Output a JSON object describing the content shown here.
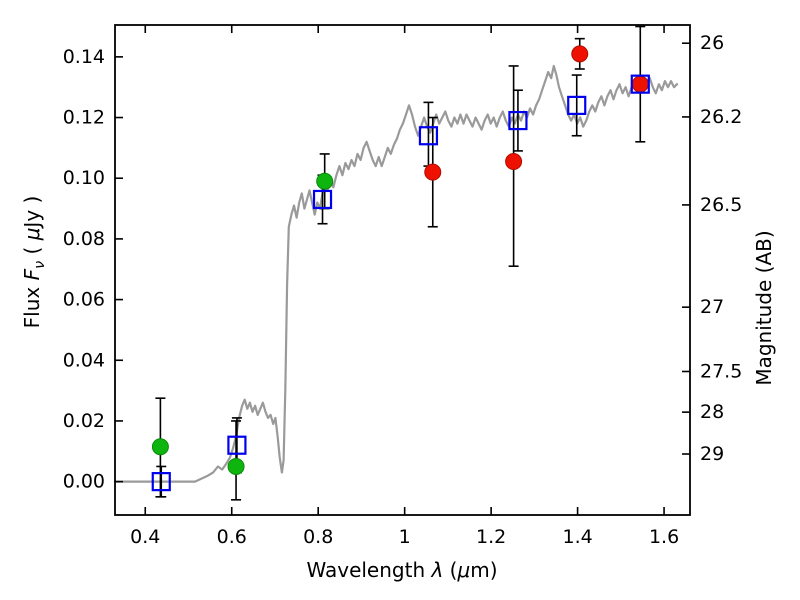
{
  "figure": {
    "background": "#ffffff",
    "frame_color": "#000000"
  },
  "chart_data": {
    "type": "line+scatter",
    "title": "",
    "grid": false,
    "legend": "none",
    "xlabel_text": "Wavelength λ (μm)",
    "ylabel_left_text": "Flux Fν ( μJy )",
    "ylabel_right": "Magnitude (AB)",
    "xlabel": {
      "t1": "Wavelength  ",
      "t2": "λ",
      "t3": " (",
      "t4": "μ",
      "t5": "m)"
    },
    "ylabel_left": {
      "t1": "Flux  ",
      "t2": "F",
      "t3": "ν",
      "t4": "  ( ",
      "t5": "μ",
      "t6": "Jy )"
    },
    "xlim": [
      0.33,
      1.66
    ],
    "ylim": [
      -0.011,
      0.1505
    ],
    "x_ticks": [
      {
        "v": 0.4,
        "label": "0.4"
      },
      {
        "v": 0.6,
        "label": "0.6"
      },
      {
        "v": 0.8,
        "label": "0.8"
      },
      {
        "v": 1.0,
        "label": "1"
      },
      {
        "v": 1.2,
        "label": "1.2"
      },
      {
        "v": 1.4,
        "label": "1.4"
      },
      {
        "v": 1.6,
        "label": "1.6"
      }
    ],
    "y_ticks_left": [
      {
        "v": 0.0,
        "label": "0.00"
      },
      {
        "v": 0.02,
        "label": "0.02"
      },
      {
        "v": 0.04,
        "label": "0.04"
      },
      {
        "v": 0.06,
        "label": "0.06"
      },
      {
        "v": 0.08,
        "label": "0.08"
      },
      {
        "v": 0.1,
        "label": "0.10"
      },
      {
        "v": 0.12,
        "label": "0.12"
      },
      {
        "v": 0.14,
        "label": "0.14"
      }
    ],
    "y_ticks_right": [
      {
        "flux": 0.1445,
        "label": "26"
      },
      {
        "flux": 0.1202,
        "label": "26.2"
      },
      {
        "flux": 0.0912,
        "label": "26.5"
      },
      {
        "flux": 0.0575,
        "label": "27"
      },
      {
        "flux": 0.0363,
        "label": "27.5"
      },
      {
        "flux": 0.0229,
        "label": "28"
      },
      {
        "flux": 0.0091,
        "label": "29"
      }
    ],
    "errorbar_color": "#000000",
    "spectrum": {
      "name": "model-spectrum",
      "color": "#9a9a9a",
      "width": 2.2,
      "xy": [
        [
          0.33,
          0.0
        ],
        [
          0.37,
          0.0
        ],
        [
          0.41,
          0.0
        ],
        [
          0.45,
          0.0
        ],
        [
          0.49,
          0.0
        ],
        [
          0.515,
          0.0
        ],
        [
          0.53,
          0.001
        ],
        [
          0.545,
          0.002
        ],
        [
          0.557,
          0.003
        ],
        [
          0.568,
          0.005
        ],
        [
          0.578,
          0.004
        ],
        [
          0.588,
          0.006
        ],
        [
          0.596,
          0.008
        ],
        [
          0.603,
          0.011
        ],
        [
          0.61,
          0.015
        ],
        [
          0.617,
          0.021
        ],
        [
          0.624,
          0.025
        ],
        [
          0.63,
          0.027
        ],
        [
          0.636,
          0.024
        ],
        [
          0.642,
          0.026
        ],
        [
          0.648,
          0.023
        ],
        [
          0.654,
          0.025
        ],
        [
          0.66,
          0.022
        ],
        [
          0.666,
          0.024
        ],
        [
          0.672,
          0.026
        ],
        [
          0.678,
          0.023
        ],
        [
          0.684,
          0.021
        ],
        [
          0.69,
          0.022
        ],
        [
          0.696,
          0.019
        ],
        [
          0.701,
          0.021
        ],
        [
          0.706,
          0.015
        ],
        [
          0.711,
          0.008
        ],
        [
          0.716,
          0.003
        ],
        [
          0.72,
          0.007
        ],
        [
          0.724,
          0.03
        ],
        [
          0.728,
          0.065
        ],
        [
          0.732,
          0.084
        ],
        [
          0.738,
          0.088
        ],
        [
          0.744,
          0.091
        ],
        [
          0.75,
          0.087
        ],
        [
          0.756,
          0.092
        ],
        [
          0.762,
          0.095
        ],
        [
          0.768,
          0.09
        ],
        [
          0.774,
          0.093
        ],
        [
          0.78,
          0.096
        ],
        [
          0.786,
          0.092
        ],
        [
          0.792,
          0.088
        ],
        [
          0.798,
          0.092
        ],
        [
          0.804,
          0.09
        ],
        [
          0.81,
          0.095
        ],
        [
          0.816,
          0.098
        ],
        [
          0.822,
          0.096
        ],
        [
          0.828,
          0.1
        ],
        [
          0.835,
          0.097
        ],
        [
          0.842,
          0.101
        ],
        [
          0.849,
          0.104
        ],
        [
          0.856,
          0.101
        ],
        [
          0.863,
          0.105
        ],
        [
          0.87,
          0.103
        ],
        [
          0.877,
          0.106
        ],
        [
          0.884,
          0.104
        ],
        [
          0.891,
          0.108
        ],
        [
          0.898,
          0.106
        ],
        [
          0.905,
          0.11
        ],
        [
          0.912,
          0.112
        ],
        [
          0.919,
          0.109
        ],
        [
          0.926,
          0.106
        ],
        [
          0.933,
          0.104
        ],
        [
          0.94,
          0.107
        ],
        [
          0.947,
          0.104
        ],
        [
          0.954,
          0.107
        ],
        [
          0.961,
          0.11
        ],
        [
          0.968,
          0.108
        ],
        [
          0.975,
          0.111
        ],
        [
          0.982,
          0.113
        ],
        [
          0.989,
          0.116
        ],
        [
          0.996,
          0.118
        ],
        [
          1.003,
          0.121
        ],
        [
          1.01,
          0.124
        ],
        [
          1.017,
          0.121
        ],
        [
          1.024,
          0.117
        ],
        [
          1.031,
          0.114
        ],
        [
          1.038,
          0.117
        ],
        [
          1.045,
          0.12
        ],
        [
          1.052,
          0.117
        ],
        [
          1.059,
          0.115
        ],
        [
          1.066,
          0.118
        ],
        [
          1.073,
          0.121
        ],
        [
          1.08,
          0.118
        ],
        [
          1.087,
          0.12
        ],
        [
          1.094,
          0.122
        ],
        [
          1.101,
          0.119
        ],
        [
          1.108,
          0.117
        ],
        [
          1.115,
          0.12
        ],
        [
          1.122,
          0.118
        ],
        [
          1.129,
          0.121
        ],
        [
          1.136,
          0.118
        ],
        [
          1.143,
          0.121
        ],
        [
          1.15,
          0.119
        ],
        [
          1.157,
          0.117
        ],
        [
          1.164,
          0.12
        ],
        [
          1.171,
          0.118
        ],
        [
          1.178,
          0.116
        ],
        [
          1.185,
          0.119
        ],
        [
          1.192,
          0.121
        ],
        [
          1.199,
          0.118
        ],
        [
          1.206,
          0.12
        ],
        [
          1.213,
          0.117
        ],
        [
          1.22,
          0.12
        ],
        [
          1.227,
          0.122
        ],
        [
          1.234,
          0.119
        ],
        [
          1.241,
          0.117
        ],
        [
          1.248,
          0.12
        ],
        [
          1.255,
          0.118
        ],
        [
          1.262,
          0.121
        ],
        [
          1.269,
          0.119
        ],
        [
          1.276,
          0.122
        ],
        [
          1.283,
          0.12
        ],
        [
          1.29,
          0.123
        ],
        [
          1.297,
          0.121
        ],
        [
          1.304,
          0.124
        ],
        [
          1.311,
          0.126
        ],
        [
          1.318,
          0.129
        ],
        [
          1.325,
          0.132
        ],
        [
          1.332,
          0.135
        ],
        [
          1.339,
          0.133
        ],
        [
          1.345,
          0.137
        ],
        [
          1.351,
          0.134
        ],
        [
          1.357,
          0.13
        ],
        [
          1.364,
          0.127
        ],
        [
          1.371,
          0.124
        ],
        [
          1.378,
          0.121
        ],
        [
          1.385,
          0.119
        ],
        [
          1.392,
          0.121
        ],
        [
          1.399,
          0.118
        ],
        [
          1.406,
          0.12
        ],
        [
          1.413,
          0.117
        ],
        [
          1.42,
          0.119
        ],
        [
          1.427,
          0.122
        ],
        [
          1.434,
          0.124
        ],
        [
          1.441,
          0.122
        ],
        [
          1.448,
          0.125
        ],
        [
          1.455,
          0.127
        ],
        [
          1.462,
          0.124
        ],
        [
          1.469,
          0.127
        ],
        [
          1.476,
          0.129
        ],
        [
          1.483,
          0.126
        ],
        [
          1.49,
          0.129
        ],
        [
          1.497,
          0.131
        ],
        [
          1.504,
          0.128
        ],
        [
          1.511,
          0.13
        ],
        [
          1.518,
          0.127
        ],
        [
          1.525,
          0.13
        ],
        [
          1.532,
          0.132
        ],
        [
          1.539,
          0.129
        ],
        [
          1.546,
          0.131
        ],
        [
          1.553,
          0.129
        ],
        [
          1.56,
          0.132
        ],
        [
          1.567,
          0.133
        ],
        [
          1.574,
          0.13
        ],
        [
          1.581,
          0.128
        ],
        [
          1.588,
          0.131
        ],
        [
          1.595,
          0.129
        ],
        [
          1.602,
          0.132
        ],
        [
          1.609,
          0.13
        ],
        [
          1.616,
          0.132
        ],
        [
          1.623,
          0.13
        ],
        [
          1.63,
          0.131
        ]
      ]
    },
    "series": [
      {
        "name": "green-circles",
        "marker": "circle",
        "color": "#0fb50f",
        "edge": "#0a8a0a",
        "points": [
          {
            "x": 0.435,
            "y": 0.0115,
            "lo": 0.0165,
            "hi": 0.016
          },
          {
            "x": 0.61,
            "y": 0.005,
            "lo": 0.011,
            "hi": 0.015
          },
          {
            "x": 0.815,
            "y": 0.099,
            "lo": 0.009,
            "hi": 0.009
          }
        ]
      },
      {
        "name": "red-circles",
        "marker": "circle",
        "color": "#ee1100",
        "edge": "#b00d00",
        "points": [
          {
            "x": 1.065,
            "y": 0.102,
            "lo": 0.018,
            "hi": 0.018
          },
          {
            "x": 1.252,
            "y": 0.1055,
            "lo": 0.0345,
            "hi": 0.0315
          },
          {
            "x": 1.405,
            "y": 0.141,
            "lo": 0.005,
            "hi": 0.005
          },
          {
            "x": 1.545,
            "y": 0.131,
            "lo": 0,
            "hi": 0
          }
        ]
      },
      {
        "name": "blue-squares",
        "marker": "square",
        "color": "#0000ee",
        "edge": "#0000ee",
        "points": [
          {
            "x": 0.437,
            "y": 0.0,
            "lo": 0.005,
            "hi": 0.005
          },
          {
            "x": 0.612,
            "y": 0.012,
            "lo": 0.009,
            "hi": 0.009
          },
          {
            "x": 0.81,
            "y": 0.093,
            "lo": 0.008,
            "hi": 0.008
          },
          {
            "x": 1.055,
            "y": 0.114,
            "lo": 0.01,
            "hi": 0.011
          },
          {
            "x": 1.262,
            "y": 0.119,
            "lo": 0.01,
            "hi": 0.01
          },
          {
            "x": 1.398,
            "y": 0.124,
            "lo": 0.01,
            "hi": 0.01
          },
          {
            "x": 1.545,
            "y": 0.131,
            "lo": 0.019,
            "hi": 0.019
          }
        ]
      }
    ]
  }
}
